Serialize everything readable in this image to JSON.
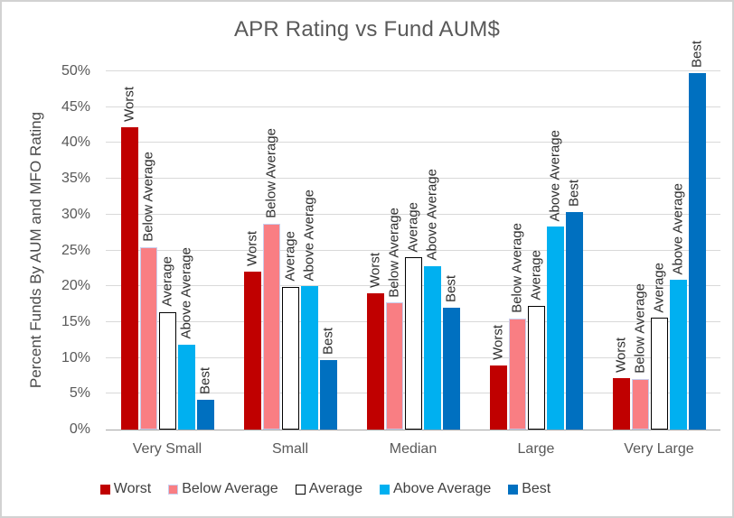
{
  "title": "APR Rating vs Fund AUM$",
  "y_axis": {
    "label": "Percent Funds By AUM and MFO Rating",
    "ticks": [
      "0%",
      "5%",
      "10%",
      "15%",
      "20%",
      "25%",
      "30%",
      "35%",
      "40%",
      "45%",
      "50%"
    ],
    "min": 0,
    "max": 50,
    "step": 5
  },
  "chart_data": {
    "type": "bar",
    "title": "APR Rating vs Fund AUM$",
    "xlabel": "",
    "ylabel": "Percent Funds By AUM and MFO Rating",
    "ylim": [
      0,
      50
    ],
    "grid": "horizontal",
    "legend_position": "bottom",
    "bar_label_style": "series name above each bar, rotated 90 degrees",
    "categories": [
      "Very Small",
      "Small",
      "Median",
      "Large",
      "Very Large"
    ],
    "series": [
      {
        "name": "Worst",
        "color": "#C00000",
        "border": "",
        "values": [
          42.2,
          22.0,
          19.0,
          8.9,
          7.2
        ]
      },
      {
        "name": "Below Average",
        "color": "#F97E83",
        "border": "#c8cdec",
        "values": [
          25.5,
          28.7,
          17.7,
          15.5,
          7.1
        ]
      },
      {
        "name": "Average",
        "color": "#FFFFFF",
        "border": "#000000",
        "values": [
          16.4,
          19.9,
          24.0,
          17.3,
          15.6
        ]
      },
      {
        "name": "Above Average",
        "color": "#00B0F0",
        "border": "",
        "values": [
          11.9,
          20.0,
          22.8,
          28.3,
          20.9
        ]
      },
      {
        "name": "Best",
        "color": "#0070C0",
        "border": "",
        "values": [
          4.2,
          9.7,
          17.0,
          30.3,
          49.8
        ]
      }
    ],
    "colors": {
      "gridline": "#d9d9d9",
      "axis_line": "#a6a6a6",
      "title_text": "#595959",
      "axis_text": "#595959",
      "bar_label_text": "#2e2e2e"
    }
  },
  "legend": {
    "items": [
      "Worst",
      "Below Average",
      "Average",
      "Above Average",
      "Best"
    ]
  }
}
